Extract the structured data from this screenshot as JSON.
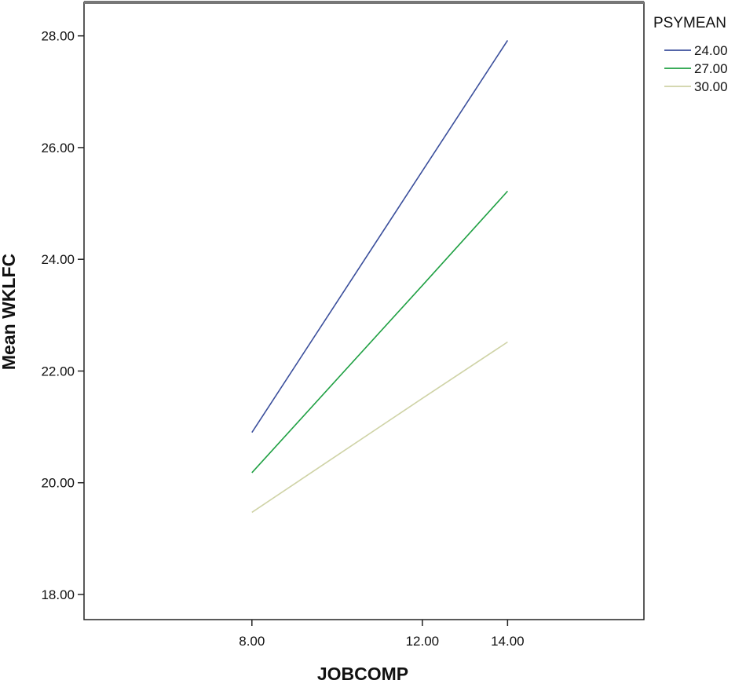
{
  "chart_data": {
    "type": "line",
    "xlabel": "JOBCOMP",
    "ylabel": "Mean WKLFC",
    "categories": [
      "8.00",
      "12.00",
      "14.00"
    ],
    "yticks": [
      "18.00",
      "20.00",
      "22.00",
      "24.00",
      "26.00",
      "28.00"
    ],
    "ylim": [
      17.55,
      28.6
    ],
    "grid": false,
    "legend": {
      "title": "PSYMEAN",
      "placement": "top-right outside plot"
    },
    "series": [
      {
        "name": "24.00",
        "color": "#3b4f9c",
        "values": [
          20.9,
          25.58,
          27.92
        ]
      },
      {
        "name": "27.00",
        "color": "#1fa043",
        "values": [
          20.18,
          23.53,
          25.22
        ]
      },
      {
        "name": "30.00",
        "color": "#cfd3a6",
        "values": [
          19.47,
          21.51,
          22.52
        ]
      }
    ]
  }
}
